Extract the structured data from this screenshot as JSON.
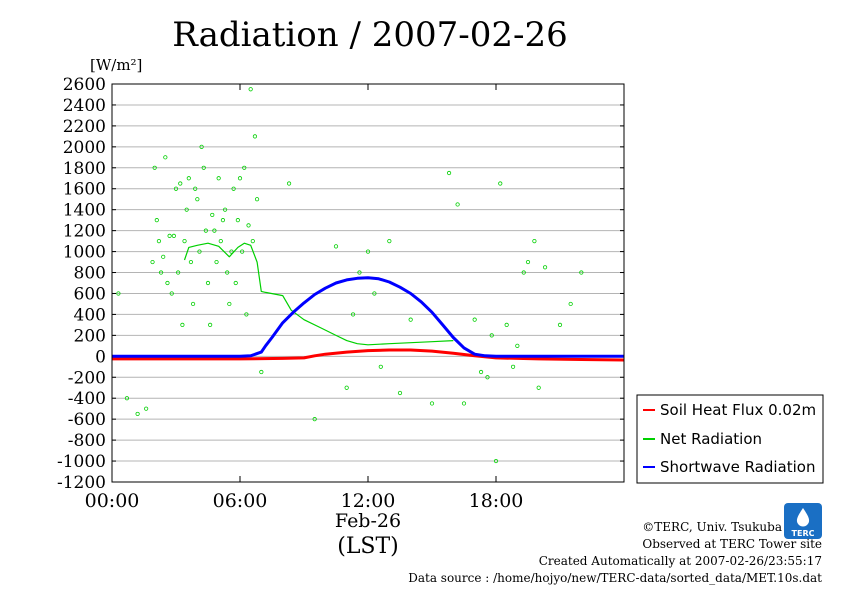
{
  "chart_data": {
    "type": "line",
    "title": "Radiation / 2007-02-26",
    "ylabel": "[W/m²]",
    "ylim": [
      -1200,
      2600
    ],
    "yticks": [
      2600,
      2400,
      2200,
      2000,
      1800,
      1600,
      1400,
      1200,
      1000,
      800,
      600,
      400,
      200,
      0,
      -200,
      -400,
      -600,
      -800,
      -1000,
      -1200
    ],
    "xlim": [
      0,
      24
    ],
    "xticks": [
      {
        "x": 0,
        "label": "00:00"
      },
      {
        "x": 6,
        "label": "06:00"
      },
      {
        "x": 12,
        "label": "12:00"
      },
      {
        "x": 18,
        "label": "18:00"
      }
    ],
    "xlabel_date": "Feb-26",
    "xlabel_unit": "(LST)",
    "grid": true,
    "legend_position": "bottom-right",
    "series": [
      {
        "name": "Soil Heat Flux 0.02m",
        "color": "#ff0000",
        "x": [
          0,
          2,
          4,
          6,
          8,
          9,
          9.5,
          10,
          11,
          12,
          13,
          14,
          15,
          16,
          17,
          18,
          20,
          22,
          24
        ],
        "y": [
          -25,
          -25,
          -25,
          -25,
          -20,
          -15,
          5,
          20,
          40,
          55,
          60,
          60,
          50,
          30,
          5,
          -15,
          -25,
          -30,
          -35
        ]
      },
      {
        "name": "Net Radiation",
        "color": "#00d000",
        "x": [
          3.4,
          3.6,
          4,
          4.5,
          5,
          5.5,
          5.9,
          6.2,
          6.5,
          6.8,
          7,
          7.2,
          8,
          8.4,
          9,
          9.8,
          10.5,
          11,
          11.5,
          12,
          13,
          14,
          15,
          16
        ],
        "y": [
          920,
          1040,
          1060,
          1080,
          1050,
          950,
          1040,
          1080,
          1060,
          900,
          620,
          610,
          580,
          440,
          350,
          270,
          200,
          150,
          120,
          110,
          120,
          130,
          140,
          150
        ]
      },
      {
        "name": "Shortwave Radiation",
        "color": "#0000ff",
        "x": [
          0,
          6,
          6.5,
          7,
          7.2,
          7.5,
          8,
          8.5,
          9,
          9.5,
          10,
          10.5,
          11,
          11.5,
          12,
          12.5,
          13,
          13.5,
          14,
          14.5,
          15,
          15.5,
          16,
          16.5,
          17,
          17.5,
          18,
          20,
          22,
          24
        ],
        "y": [
          0,
          0,
          5,
          40,
          100,
          180,
          320,
          420,
          510,
          590,
          650,
          700,
          730,
          745,
          750,
          740,
          710,
          660,
          600,
          520,
          420,
          300,
          180,
          80,
          20,
          5,
          0,
          0,
          0,
          0
        ]
      }
    ],
    "scatter": {
      "series": "Net Radiation",
      "color": "#00d000",
      "x": [
        0.3,
        0.7,
        1.2,
        1.6,
        1.9,
        2,
        2.1,
        2.2,
        2.3,
        2.4,
        2.5,
        2.6,
        2.7,
        2.8,
        2.9,
        3,
        3.1,
        3.2,
        3.3,
        3.4,
        3.5,
        3.6,
        3.7,
        3.8,
        3.9,
        4,
        4.1,
        4.2,
        4.3,
        4.4,
        4.5,
        4.6,
        4.7,
        4.8,
        4.9,
        5,
        5.1,
        5.2,
        5.3,
        5.4,
        5.5,
        5.6,
        5.7,
        5.8,
        5.9,
        6,
        6.1,
        6.2,
        6.3,
        6.4,
        6.5,
        6.6,
        6.7,
        6.8,
        7,
        8.3,
        9.5,
        10.5,
        11,
        11.3,
        11.6,
        12,
        12.3,
        12.6,
        13,
        13.5,
        14,
        15,
        15.8,
        16.2,
        16.5,
        17,
        17.3,
        17.6,
        17.8,
        18,
        18.2,
        18.5,
        18.8,
        19,
        19.3,
        19.5,
        19.8,
        20,
        20.3,
        21,
        21.5,
        22
      ],
      "y": [
        600,
        -400,
        -550,
        -500,
        900,
        1800,
        1300,
        1100,
        800,
        950,
        1900,
        700,
        1150,
        600,
        1150,
        1600,
        800,
        1650,
        300,
        1100,
        1400,
        1700,
        900,
        500,
        1600,
        1500,
        1000,
        2000,
        1800,
        1200,
        700,
        300,
        1350,
        1200,
        900,
        1700,
        1100,
        1300,
        1400,
        800,
        500,
        1000,
        1600,
        700,
        1300,
        1700,
        1000,
        1800,
        400,
        1250,
        2550,
        1100,
        2100,
        1500,
        -150,
        1650,
        -600,
        1050,
        -300,
        400,
        800,
        1000,
        600,
        -100,
        1100,
        -350,
        350,
        -450,
        1750,
        1450,
        -450,
        350,
        -150,
        -200,
        200,
        -1000,
        1650,
        300,
        -100,
        100,
        800,
        900,
        1100,
        -300,
        850,
        300,
        500,
        800
      ]
    }
  },
  "footer": {
    "copyright": "©TERC, Univ. Tsukuba",
    "observed": "Observed at TERC Tower site",
    "created": "Created Automatically at 2007-02-26/23:55:17",
    "source": "Data source : /home/hojyo/new/TERC-data/sorted_data/MET.10s.dat"
  },
  "logo": {
    "text": "TERC",
    "color": "#1a6fc4"
  }
}
